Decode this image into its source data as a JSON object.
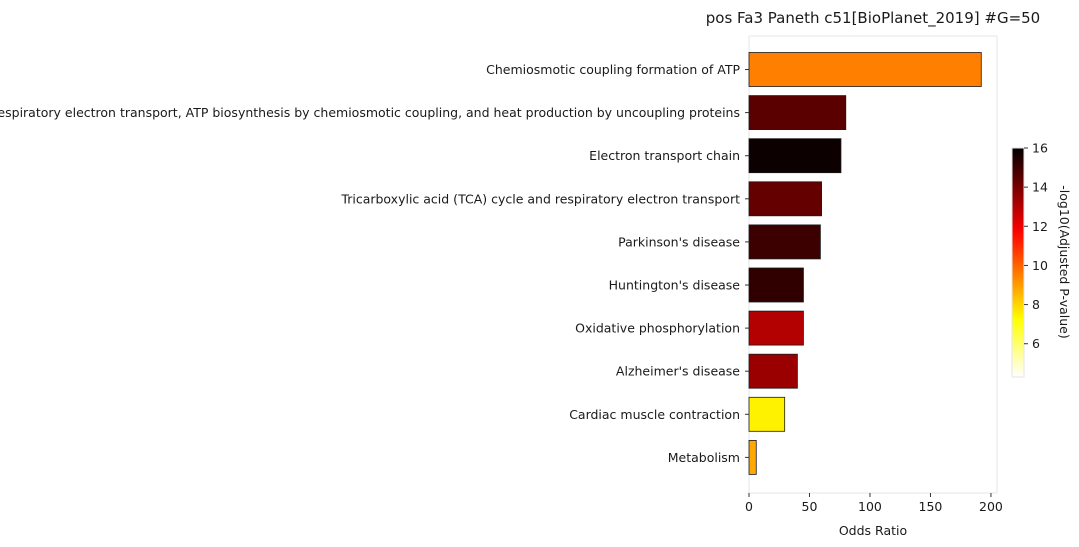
{
  "chart_data": {
    "type": "bar",
    "orientation": "horizontal",
    "title": "pos Fa3 Paneth c51[BioPlanet_2019] #G=50",
    "xlabel": "Odds Ratio",
    "ylabel": "",
    "xlim": [
      0,
      205
    ],
    "xticks": [
      0,
      50,
      100,
      150,
      200
    ],
    "grid": false,
    "categories": [
      "Chemiosmotic coupling formation of ATP",
      "Respiratory electron transport, ATP biosynthesis by chemiosmotic coupling, and heat production by uncoupling proteins",
      "Electron transport chain",
      "Tricarboxylic acid (TCA) cycle and respiratory electron transport",
      "Parkinson's disease",
      "Huntington's disease",
      "Oxidative phosphorylation",
      "Alzheimer's disease",
      "Cardiac muscle contraction",
      "Metabolism"
    ],
    "values": [
      192,
      80,
      76,
      60,
      59,
      45,
      45,
      40,
      29.5,
      6
    ],
    "color_values": [
      9.5,
      14.5,
      15.8,
      14.3,
      15.0,
      15.2,
      13.0,
      13.4,
      7.5,
      8.8
    ],
    "colorbar": {
      "label": "-log10(Adjusted P-value)",
      "range": [
        4.3,
        16
      ],
      "ticks": [
        6,
        8,
        10,
        12,
        14,
        16
      ],
      "colormap": "hot_r"
    }
  }
}
